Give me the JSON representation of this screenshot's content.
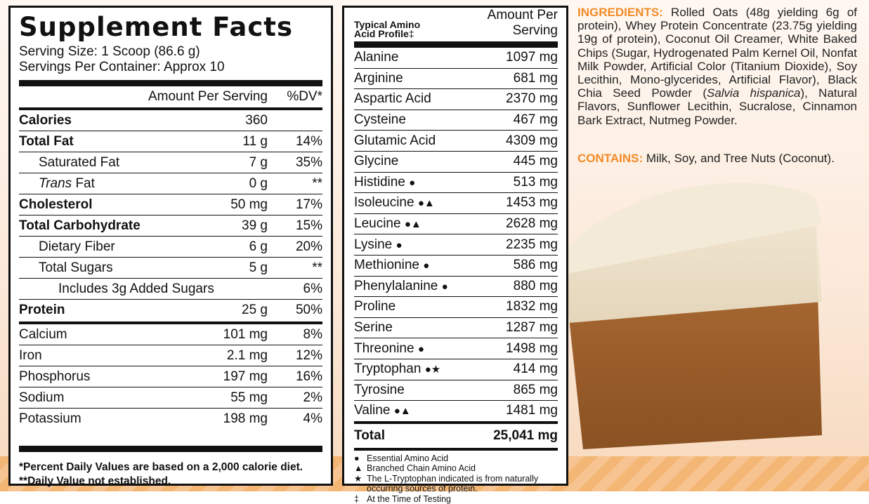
{
  "supplement": {
    "title": "Supplement Facts",
    "serving_size": "Serving Size: 1 Scoop (86.6 g)",
    "servings_per_container": "Servings Per Container: Approx 10",
    "header_amount": "Amount Per Serving",
    "header_dv": "%DV*",
    "rows": [
      {
        "name": "Calories",
        "amount": "360",
        "dv": "",
        "bold": true,
        "indent": 0
      },
      {
        "name": "Total Fat",
        "amount": "11 g",
        "dv": "14%",
        "bold": true,
        "indent": 0
      },
      {
        "name": "Saturated Fat",
        "amount": "7 g",
        "dv": "35%",
        "bold": false,
        "indent": 1
      },
      {
        "name_italic": "Trans",
        "name_rest": " Fat",
        "amount": "0 g",
        "dv": "**",
        "bold": false,
        "indent": 1
      },
      {
        "name": "Cholesterol",
        "amount": "50 mg",
        "dv": "17%",
        "bold": true,
        "indent": 0
      },
      {
        "name": "Total Carbohydrate",
        "amount": "39 g",
        "dv": "15%",
        "bold": true,
        "indent": 0
      },
      {
        "name": "Dietary Fiber",
        "amount": "6 g",
        "dv": "20%",
        "bold": false,
        "indent": 1
      },
      {
        "name": "Total Sugars",
        "amount": "5 g",
        "dv": "**",
        "bold": false,
        "indent": 1
      },
      {
        "name": "Includes 3g Added Sugars",
        "amount": "",
        "dv": "6%",
        "bold": false,
        "indent": 2
      },
      {
        "name": "Protein",
        "amount": "25 g",
        "dv": "50%",
        "bold": true,
        "indent": 0
      }
    ],
    "minerals": [
      {
        "name": "Calcium",
        "amount": "101 mg",
        "dv": "8%"
      },
      {
        "name": "Iron",
        "amount": "2.1 mg",
        "dv": "12%"
      },
      {
        "name": "Phosphorus",
        "amount": "197 mg",
        "dv": "16%"
      },
      {
        "name": "Sodium",
        "amount": "55 mg",
        "dv": "2%"
      },
      {
        "name": "Potassium",
        "amount": "198 mg",
        "dv": "4%"
      }
    ],
    "footnote_1": "*Percent Daily Values are based on a 2,000 calorie diet.",
    "footnote_2": "**Daily Value not established."
  },
  "amino": {
    "label_line1": "Typical Amino",
    "label_line2": "Acid Profile",
    "label_mark": "‡",
    "header_amount": "Amount Per Serving",
    "rows": [
      {
        "name": "Alanine",
        "sym": "",
        "val": "1097 mg"
      },
      {
        "name": "Arginine",
        "sym": "",
        "val": "681 mg"
      },
      {
        "name": "Aspartic Acid",
        "sym": "",
        "val": "2370 mg"
      },
      {
        "name": "Cysteine",
        "sym": "",
        "val": "467 mg"
      },
      {
        "name": "Glutamic Acid",
        "sym": "",
        "val": "4309 mg"
      },
      {
        "name": "Glycine",
        "sym": "",
        "val": "445 mg"
      },
      {
        "name": "Histidine",
        "sym": "●",
        "val": "513 mg"
      },
      {
        "name": "Isoleucine",
        "sym": "●▲",
        "val": "1453 mg"
      },
      {
        "name": "Leucine",
        "sym": "●▲",
        "val": "2628 mg"
      },
      {
        "name": "Lysine",
        "sym": "●",
        "val": "2235 mg"
      },
      {
        "name": "Methionine",
        "sym": "●",
        "val": "586 mg"
      },
      {
        "name": "Phenylalanine",
        "sym": "●",
        "val": "880 mg"
      },
      {
        "name": "Proline",
        "sym": "",
        "val": "1832 mg"
      },
      {
        "name": "Serine",
        "sym": "",
        "val": "1287 mg"
      },
      {
        "name": "Threonine",
        "sym": "●",
        "val": "1498 mg"
      },
      {
        "name": "Tryptophan",
        "sym": "●★",
        "val": "414 mg"
      },
      {
        "name": "Tyrosine",
        "sym": "",
        "val": "865 mg"
      },
      {
        "name": "Valine",
        "sym": "●▲",
        "val": "1481 mg"
      }
    ],
    "total_label": "Total",
    "total_value": "25,041 mg",
    "legend": [
      {
        "sym": "●",
        "text": "Essential Amino Acid"
      },
      {
        "sym": "▲",
        "text": "Branched Chain Amino Acid"
      },
      {
        "sym": "★",
        "text": "The L-Tryptophan indicated is from naturally occurring sources of protein."
      },
      {
        "sym": "‡",
        "text": "At the Time of Testing"
      }
    ]
  },
  "ingredients": {
    "label": "INGREDIENTS:",
    "text_part1": " Rolled Oats (48g yielding 6g of protein), Whey Protein Concentrate (23.75g yielding 19g of protein), Coconut Oil Creamer, White Baked Chips (Sugar, Hydrogenated Palm Kernel Oil, Nonfat Milk Powder, Artificial Color (Titanium Dioxide), Soy Lecithin, Mono-glycerides, Artificial Flavor), Black Chia Seed Powder (",
    "text_italic": "Salvia hispanica",
    "text_part2": "), Natural Flavors, Sunflower Lecithin, Sucralose, Cinnamon Bark Extract, Nutmeg Powder.",
    "contains_label": "CONTAINS:",
    "contains_text": " Milk, Soy, and Tree Nuts (Coconut)."
  },
  "colors": {
    "accent": "#f28c28",
    "panel_border": "#111111"
  }
}
